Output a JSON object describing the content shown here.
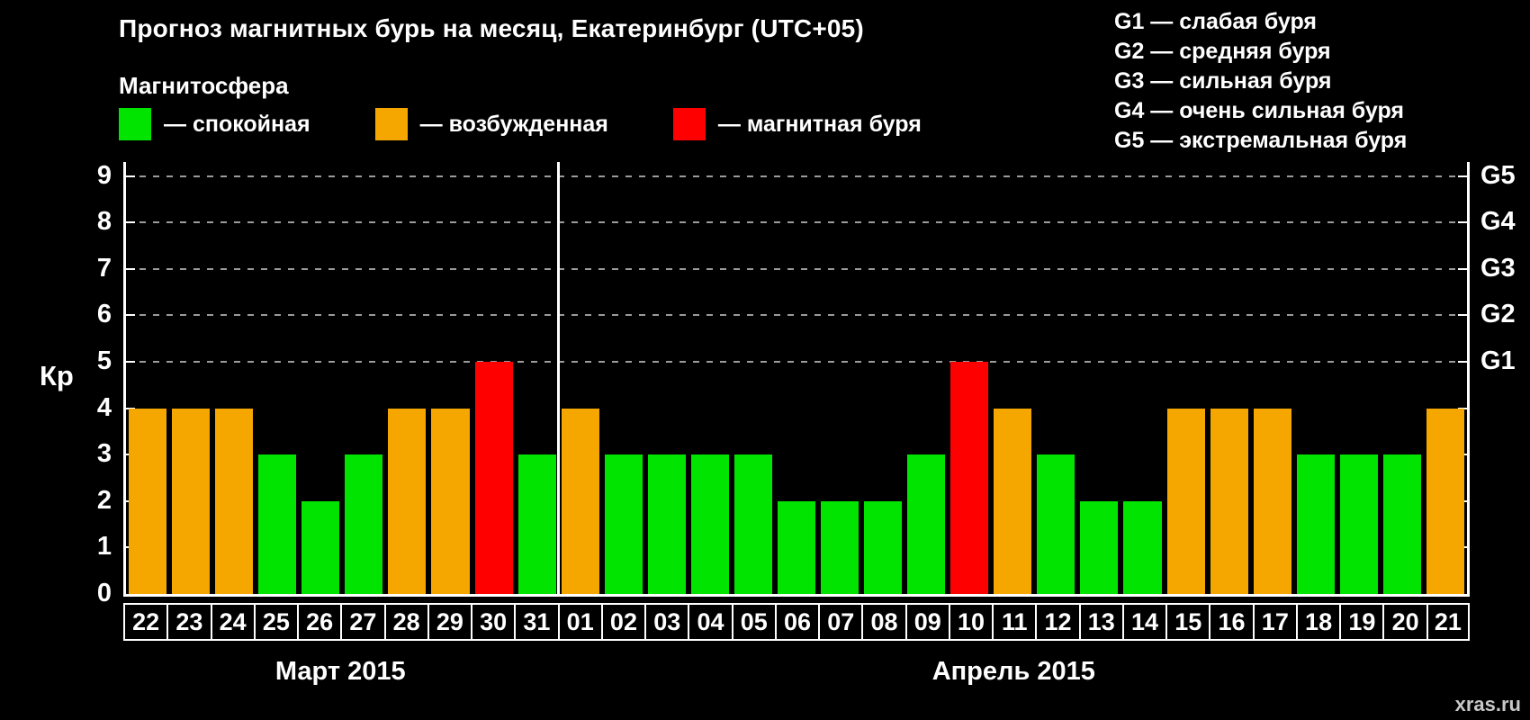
{
  "title": "Прогноз магнитных бурь на месяц, Екатеринбург (UTC+05)",
  "subtitle": "Магнитосфера",
  "legend": [
    {
      "label": "— спокойная",
      "color": "#00e400",
      "state": "quiet"
    },
    {
      "label": "— возбужденная",
      "color": "#f5a700",
      "state": "excited"
    },
    {
      "label": "— магнитная буря",
      "color": "#ff0000",
      "state": "storm"
    }
  ],
  "g_scale_legend": [
    "G1 — слабая буря",
    "G2 — средняя буря",
    "G3 — сильная буря",
    "G4 — очень сильная буря",
    "G5 — экстремальная буря"
  ],
  "watermark": "xras.ru",
  "chart_data": {
    "type": "bar",
    "title": "Прогноз магнитных бурь на месяц, Екатеринбург (UTC+05)",
    "ylabel": "Кр",
    "ylim": [
      0,
      9
    ],
    "yticks": [
      0,
      1,
      2,
      3,
      4,
      5,
      6,
      7,
      8,
      9
    ],
    "grid": true,
    "gridlines": [
      5,
      6,
      7,
      8,
      9
    ],
    "legend_position": "top",
    "right_axis_labels": [
      {
        "label": "G1",
        "value": 5
      },
      {
        "label": "G2",
        "value": 6
      },
      {
        "label": "G3",
        "value": 7
      },
      {
        "label": "G4",
        "value": 8
      },
      {
        "label": "G5",
        "value": 9
      }
    ],
    "state_colors": {
      "quiet": "#00e400",
      "excited": "#f5a700",
      "storm": "#ff0000"
    },
    "categories": [
      "22",
      "23",
      "24",
      "25",
      "26",
      "27",
      "28",
      "29",
      "30",
      "31",
      "01",
      "02",
      "03",
      "04",
      "05",
      "06",
      "07",
      "08",
      "09",
      "10",
      "11",
      "12",
      "13",
      "14",
      "15",
      "16",
      "17",
      "18",
      "19",
      "20",
      "21"
    ],
    "values": [
      4,
      4,
      4,
      3,
      2,
      3,
      4,
      4,
      5,
      3,
      4,
      3,
      3,
      3,
      3,
      2,
      2,
      2,
      3,
      5,
      4,
      3,
      2,
      2,
      4,
      4,
      4,
      3,
      3,
      3,
      4
    ],
    "states": [
      "excited",
      "excited",
      "excited",
      "quiet",
      "quiet",
      "quiet",
      "excited",
      "excited",
      "storm",
      "quiet",
      "excited",
      "quiet",
      "quiet",
      "quiet",
      "quiet",
      "quiet",
      "quiet",
      "quiet",
      "quiet",
      "storm",
      "excited",
      "quiet",
      "quiet",
      "quiet",
      "excited",
      "excited",
      "excited",
      "quiet",
      "quiet",
      "quiet",
      "excited"
    ],
    "months": [
      {
        "label": "Март 2015",
        "count": 10
      },
      {
        "label": "Апрель 2015",
        "count": 21
      }
    ]
  }
}
